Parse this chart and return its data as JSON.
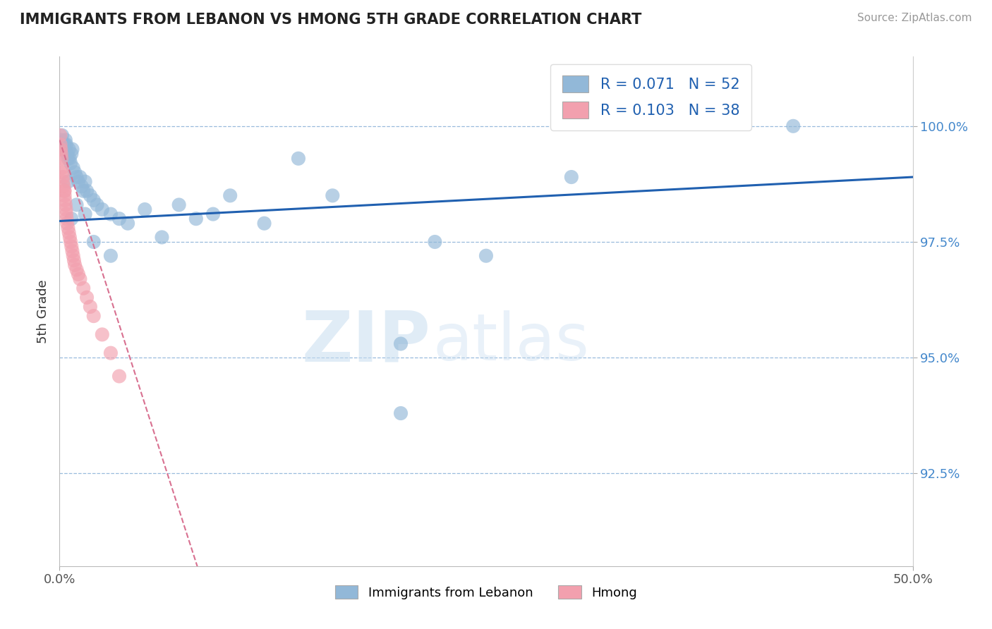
{
  "title": "IMMIGRANTS FROM LEBANON VS HMONG 5TH GRADE CORRELATION CHART",
  "source": "Source: ZipAtlas.com",
  "ylabel": "5th Grade",
  "legend_label1": "Immigrants from Lebanon",
  "legend_label2": "Hmong",
  "R1": 0.071,
  "N1": 52,
  "R2": 0.103,
  "N2": 38,
  "xlim": [
    0.0,
    50.0
  ],
  "ylim": [
    90.5,
    101.5
  ],
  "yticks": [
    92.5,
    95.0,
    97.5,
    100.0
  ],
  "ytick_labels": [
    "92.5%",
    "95.0%",
    "97.5%",
    "100.0%"
  ],
  "blue_color": "#92b8d8",
  "pink_color": "#f2a0ae",
  "blue_line_color": "#2060b0",
  "pink_line_color": "#d87090",
  "watermark_zip": "ZIP",
  "watermark_atlas": "atlas",
  "blue_scatter_x": [
    0.1,
    0.15,
    0.2,
    0.25,
    0.3,
    0.35,
    0.4,
    0.45,
    0.5,
    0.55,
    0.6,
    0.65,
    0.7,
    0.75,
    0.8,
    0.9,
    1.0,
    1.1,
    1.2,
    1.3,
    1.4,
    1.5,
    1.6,
    1.8,
    2.0,
    2.2,
    2.5,
    3.0,
    3.5,
    4.0,
    5.0,
    6.0,
    7.0,
    8.0,
    9.0,
    10.0,
    12.0,
    14.0,
    16.0,
    20.0,
    22.0,
    25.0,
    0.3,
    0.5,
    0.7,
    1.0,
    1.5,
    2.0,
    3.0,
    20.0,
    43.0,
    30.0
  ],
  "blue_scatter_y": [
    99.7,
    99.8,
    99.5,
    99.6,
    99.5,
    99.7,
    99.6,
    99.4,
    99.3,
    99.5,
    99.3,
    99.2,
    99.4,
    99.5,
    99.1,
    99.0,
    98.9,
    98.8,
    98.9,
    98.7,
    98.6,
    98.8,
    98.6,
    98.5,
    98.4,
    98.3,
    98.2,
    98.1,
    98.0,
    97.9,
    98.2,
    97.6,
    98.3,
    98.0,
    98.1,
    98.5,
    97.9,
    99.3,
    98.5,
    93.8,
    97.5,
    97.2,
    99.6,
    98.8,
    98.0,
    98.3,
    98.1,
    97.5,
    97.2,
    95.3,
    100.0,
    98.9
  ],
  "pink_scatter_x": [
    0.05,
    0.08,
    0.1,
    0.12,
    0.15,
    0.18,
    0.2,
    0.22,
    0.25,
    0.28,
    0.3,
    0.32,
    0.35,
    0.38,
    0.4,
    0.42,
    0.45,
    0.5,
    0.55,
    0.6,
    0.65,
    0.7,
    0.75,
    0.8,
    0.85,
    0.9,
    1.0,
    1.1,
    1.2,
    1.4,
    1.6,
    1.8,
    2.0,
    2.5,
    3.0,
    3.5,
    0.05,
    0.3
  ],
  "pink_scatter_y": [
    99.6,
    99.5,
    99.4,
    99.3,
    99.1,
    99.0,
    98.9,
    98.8,
    98.7,
    98.6,
    98.5,
    98.4,
    98.3,
    98.2,
    98.1,
    98.0,
    97.9,
    97.8,
    97.7,
    97.6,
    97.5,
    97.4,
    97.3,
    97.2,
    97.1,
    97.0,
    96.9,
    96.8,
    96.7,
    96.5,
    96.3,
    96.1,
    95.9,
    95.5,
    95.1,
    94.6,
    99.8,
    98.6
  ],
  "blue_line_x0": 0.0,
  "blue_line_y0": 97.95,
  "blue_line_x1": 50.0,
  "blue_line_y1": 98.9,
  "pink_line_x0": 0.0,
  "pink_line_y0": 99.7,
  "pink_line_x1": 5.0,
  "pink_line_y1": 94.0
}
